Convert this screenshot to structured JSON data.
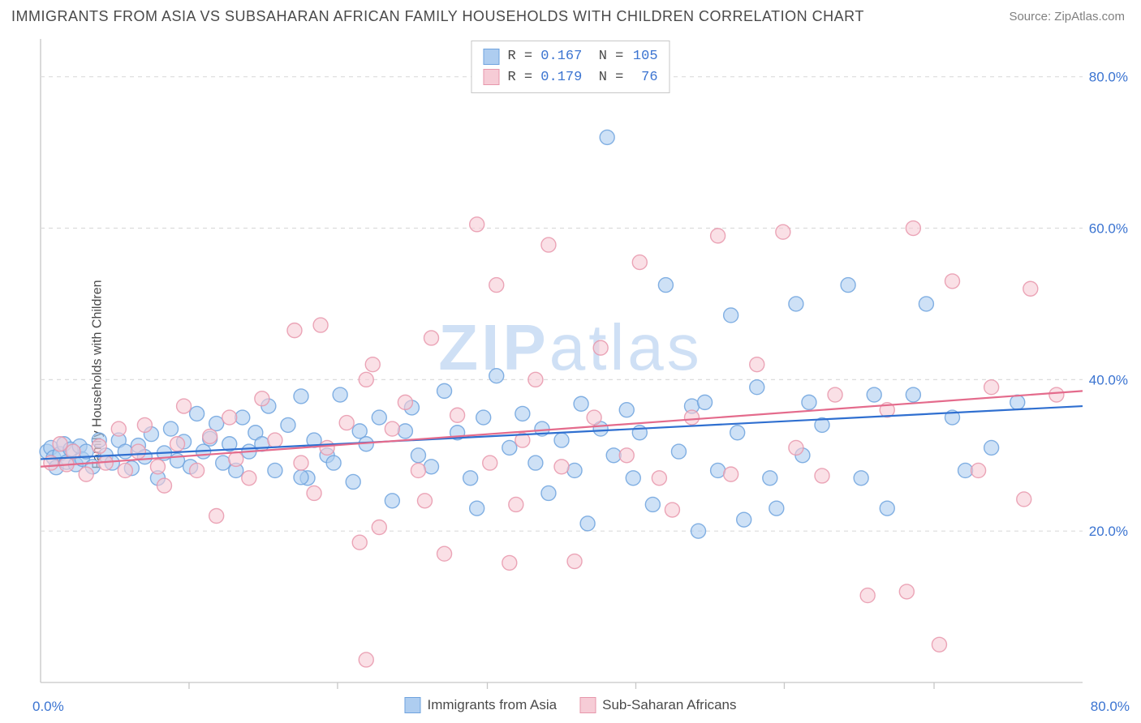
{
  "title": "IMMIGRANTS FROM ASIA VS SUBSAHARAN AFRICAN FAMILY HOUSEHOLDS WITH CHILDREN CORRELATION CHART",
  "source": "Source: ZipAtlas.com",
  "ylabel": "Family Households with Children",
  "watermark": "ZIPatlas",
  "chart": {
    "type": "scatter",
    "xlim": [
      0,
      80
    ],
    "ylim": [
      0,
      85
    ],
    "x_ticks": [
      0,
      80
    ],
    "x_tick_labels": [
      "0.0%",
      "80.0%"
    ],
    "y_ticks": [
      20,
      40,
      60,
      80
    ],
    "y_tick_labels": [
      "20.0%",
      "40.0%",
      "60.0%",
      "80.0%"
    ],
    "x_minor_ticks": [
      11.4,
      22.8,
      34.3,
      45.7,
      57.1,
      68.6
    ],
    "background_color": "#ffffff",
    "grid_color": "#dcdcdc",
    "border_color": "#c7c7c7",
    "axis_text_color": "#3b74d1",
    "marker_radius": 9,
    "marker_opacity_fill": 0.35,
    "marker_opacity_stroke": 0.85,
    "trend_line_width": 2.2,
    "series": [
      {
        "name": "Immigrants from Asia",
        "color_fill": "#aecdf0",
        "color_stroke": "#6fa3de",
        "trend_color": "#2f6fd0",
        "R": "0.167",
        "N": "105",
        "trend": {
          "x0": 0,
          "y0": 29.5,
          "x1": 80,
          "y1": 36.5
        },
        "points": [
          [
            0.5,
            30.5
          ],
          [
            0.8,
            31
          ],
          [
            1,
            29.7
          ],
          [
            1.2,
            28.4
          ],
          [
            1.5,
            30.2
          ],
          [
            1.8,
            31.5
          ],
          [
            2,
            29.1
          ],
          [
            2.3,
            30.8
          ],
          [
            2.7,
            28.8
          ],
          [
            3,
            31.2
          ],
          [
            3.2,
            29.5
          ],
          [
            3.5,
            30.5
          ],
          [
            4,
            28.5
          ],
          [
            4.5,
            32
          ],
          [
            5,
            30
          ],
          [
            5.5,
            29
          ],
          [
            6,
            32
          ],
          [
            6.5,
            30.5
          ],
          [
            7,
            28.3
          ],
          [
            7.5,
            31.3
          ],
          [
            8,
            29.8
          ],
          [
            8.5,
            32.8
          ],
          [
            9,
            27
          ],
          [
            9.5,
            30.3
          ],
          [
            10,
            33.5
          ],
          [
            10.5,
            29.3
          ],
          [
            11,
            31.8
          ],
          [
            11.5,
            28.5
          ],
          [
            12,
            35.5
          ],
          [
            12.5,
            30.5
          ],
          [
            13,
            32.2
          ],
          [
            13.5,
            34.2
          ],
          [
            14,
            29
          ],
          [
            14.5,
            31.5
          ],
          [
            15,
            28
          ],
          [
            15.5,
            35
          ],
          [
            16,
            30.5
          ],
          [
            16.5,
            33
          ],
          [
            17,
            31.5
          ],
          [
            17.5,
            36.5
          ],
          [
            18,
            28
          ],
          [
            19,
            34
          ],
          [
            20,
            37.8
          ],
          [
            20.5,
            27
          ],
          [
            21,
            32
          ],
          [
            22,
            30
          ],
          [
            22.5,
            29
          ],
          [
            23,
            38
          ],
          [
            24,
            26.5
          ],
          [
            24.5,
            33.2
          ],
          [
            25,
            31.5
          ],
          [
            26,
            35
          ],
          [
            27,
            24
          ],
          [
            28,
            33.2
          ],
          [
            28.5,
            36.3
          ],
          [
            29,
            30
          ],
          [
            30,
            28.5
          ],
          [
            31,
            38.5
          ],
          [
            32,
            33
          ],
          [
            33,
            27
          ],
          [
            33.5,
            23
          ],
          [
            34,
            35
          ],
          [
            35,
            40.5
          ],
          [
            36,
            31
          ],
          [
            37,
            35.5
          ],
          [
            38,
            29
          ],
          [
            38.5,
            33.5
          ],
          [
            39,
            25
          ],
          [
            40,
            32
          ],
          [
            41,
            28
          ],
          [
            41.5,
            36.8
          ],
          [
            42,
            21
          ],
          [
            43,
            33.5
          ],
          [
            44,
            30
          ],
          [
            45,
            36
          ],
          [
            45.5,
            27
          ],
          [
            46,
            33
          ],
          [
            47,
            23.5
          ],
          [
            48,
            52.5
          ],
          [
            49,
            30.5
          ],
          [
            50,
            36.5
          ],
          [
            50.5,
            20
          ],
          [
            51,
            37
          ],
          [
            52,
            28
          ],
          [
            53,
            48.5
          ],
          [
            53.5,
            33
          ],
          [
            54,
            21.5
          ],
          [
            55,
            39
          ],
          [
            56,
            27
          ],
          [
            56.5,
            23
          ],
          [
            58,
            50
          ],
          [
            58.5,
            30
          ],
          [
            59,
            37
          ],
          [
            60,
            34
          ],
          [
            62,
            52.5
          ],
          [
            63,
            27
          ],
          [
            64,
            38
          ],
          [
            65,
            23
          ],
          [
            67,
            38
          ],
          [
            68,
            50
          ],
          [
            70,
            35
          ],
          [
            43.5,
            72
          ],
          [
            71,
            28
          ],
          [
            73,
            31
          ],
          [
            75,
            37
          ],
          [
            20,
            27.1
          ]
        ]
      },
      {
        "name": "Sub-Saharan Africans",
        "color_fill": "#f6ccd6",
        "color_stroke": "#e797ab",
        "trend_color": "#e46b8c",
        "R": "0.179",
        "N": "76",
        "trend": {
          "x0": 0,
          "y0": 28.5,
          "x1": 80,
          "y1": 38.5
        },
        "points": [
          [
            0.8,
            29
          ],
          [
            1.5,
            31.5
          ],
          [
            2,
            28.8
          ],
          [
            2.5,
            30.5
          ],
          [
            3.5,
            27.5
          ],
          [
            4.5,
            31.2
          ],
          [
            5,
            29
          ],
          [
            6,
            33.5
          ],
          [
            6.5,
            28
          ],
          [
            7.5,
            30.5
          ],
          [
            8,
            34
          ],
          [
            9,
            28.5
          ],
          [
            9.5,
            26
          ],
          [
            10.5,
            31.5
          ],
          [
            11,
            36.5
          ],
          [
            12,
            28
          ],
          [
            13,
            32.5
          ],
          [
            13.5,
            22
          ],
          [
            14.5,
            35
          ],
          [
            15,
            29.5
          ],
          [
            16,
            27
          ],
          [
            17,
            37.5
          ],
          [
            18,
            32
          ],
          [
            19.5,
            46.5
          ],
          [
            20,
            29
          ],
          [
            21,
            25
          ],
          [
            21.5,
            47.2
          ],
          [
            22,
            31
          ],
          [
            23.5,
            34.3
          ],
          [
            24.5,
            18.5
          ],
          [
            25.5,
            42
          ],
          [
            26,
            20.5
          ],
          [
            27,
            33.5
          ],
          [
            28,
            37
          ],
          [
            29,
            28
          ],
          [
            30,
            45.5
          ],
          [
            31,
            17
          ],
          [
            32,
            35.3
          ],
          [
            33.5,
            60.5
          ],
          [
            34.5,
            29
          ],
          [
            35,
            52.5
          ],
          [
            36.5,
            23.5
          ],
          [
            37,
            32
          ],
          [
            38,
            40
          ],
          [
            39,
            57.8
          ],
          [
            40,
            28.5
          ],
          [
            41,
            16
          ],
          [
            42.5,
            35
          ],
          [
            43,
            44.2
          ],
          [
            45,
            30
          ],
          [
            46,
            55.5
          ],
          [
            47.5,
            27
          ],
          [
            48.5,
            22.8
          ],
          [
            50,
            35
          ],
          [
            52,
            59
          ],
          [
            53,
            27.5
          ],
          [
            55,
            42
          ],
          [
            57,
            59.5
          ],
          [
            58,
            31
          ],
          [
            60,
            27.3
          ],
          [
            61,
            38
          ],
          [
            25,
            40
          ],
          [
            63.5,
            11.5
          ],
          [
            65,
            36
          ],
          [
            66.5,
            12
          ],
          [
            67,
            60
          ],
          [
            69,
            5
          ],
          [
            70,
            53
          ],
          [
            72,
            28
          ],
          [
            73,
            39
          ],
          [
            75.5,
            24.2
          ],
          [
            76,
            52
          ],
          [
            78,
            38
          ],
          [
            25,
            3
          ],
          [
            36,
            15.8
          ],
          [
            29.5,
            24
          ]
        ]
      }
    ]
  },
  "legend_bottom": {
    "items": [
      {
        "label": "Immigrants from Asia",
        "fill": "#aecdf0",
        "stroke": "#6fa3de"
      },
      {
        "label": "Sub-Saharan Africans",
        "fill": "#f6ccd6",
        "stroke": "#e797ab"
      }
    ]
  }
}
